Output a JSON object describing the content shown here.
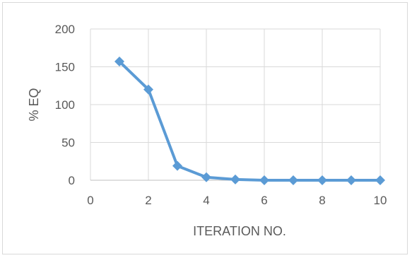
{
  "chart_data": {
    "type": "line",
    "title": "",
    "xlabel": "ITERATION NO.",
    "ylabel": "% EQ",
    "xlim": [
      0,
      10
    ],
    "ylim": [
      0,
      200
    ],
    "x_ticks": [
      "0",
      "2",
      "4",
      "6",
      "8",
      "10"
    ],
    "y_ticks": [
      "0",
      "50",
      "100",
      "150",
      "200"
    ],
    "grid": true,
    "legend": "none",
    "series": [
      {
        "x": [
          1,
          2,
          3,
          4,
          5,
          6,
          7,
          8,
          9,
          10
        ],
        "y": [
          157,
          120,
          19,
          4,
          1,
          0,
          0,
          0,
          0,
          0
        ],
        "color": "#5b9bd5",
        "marker": "diamond"
      }
    ]
  }
}
